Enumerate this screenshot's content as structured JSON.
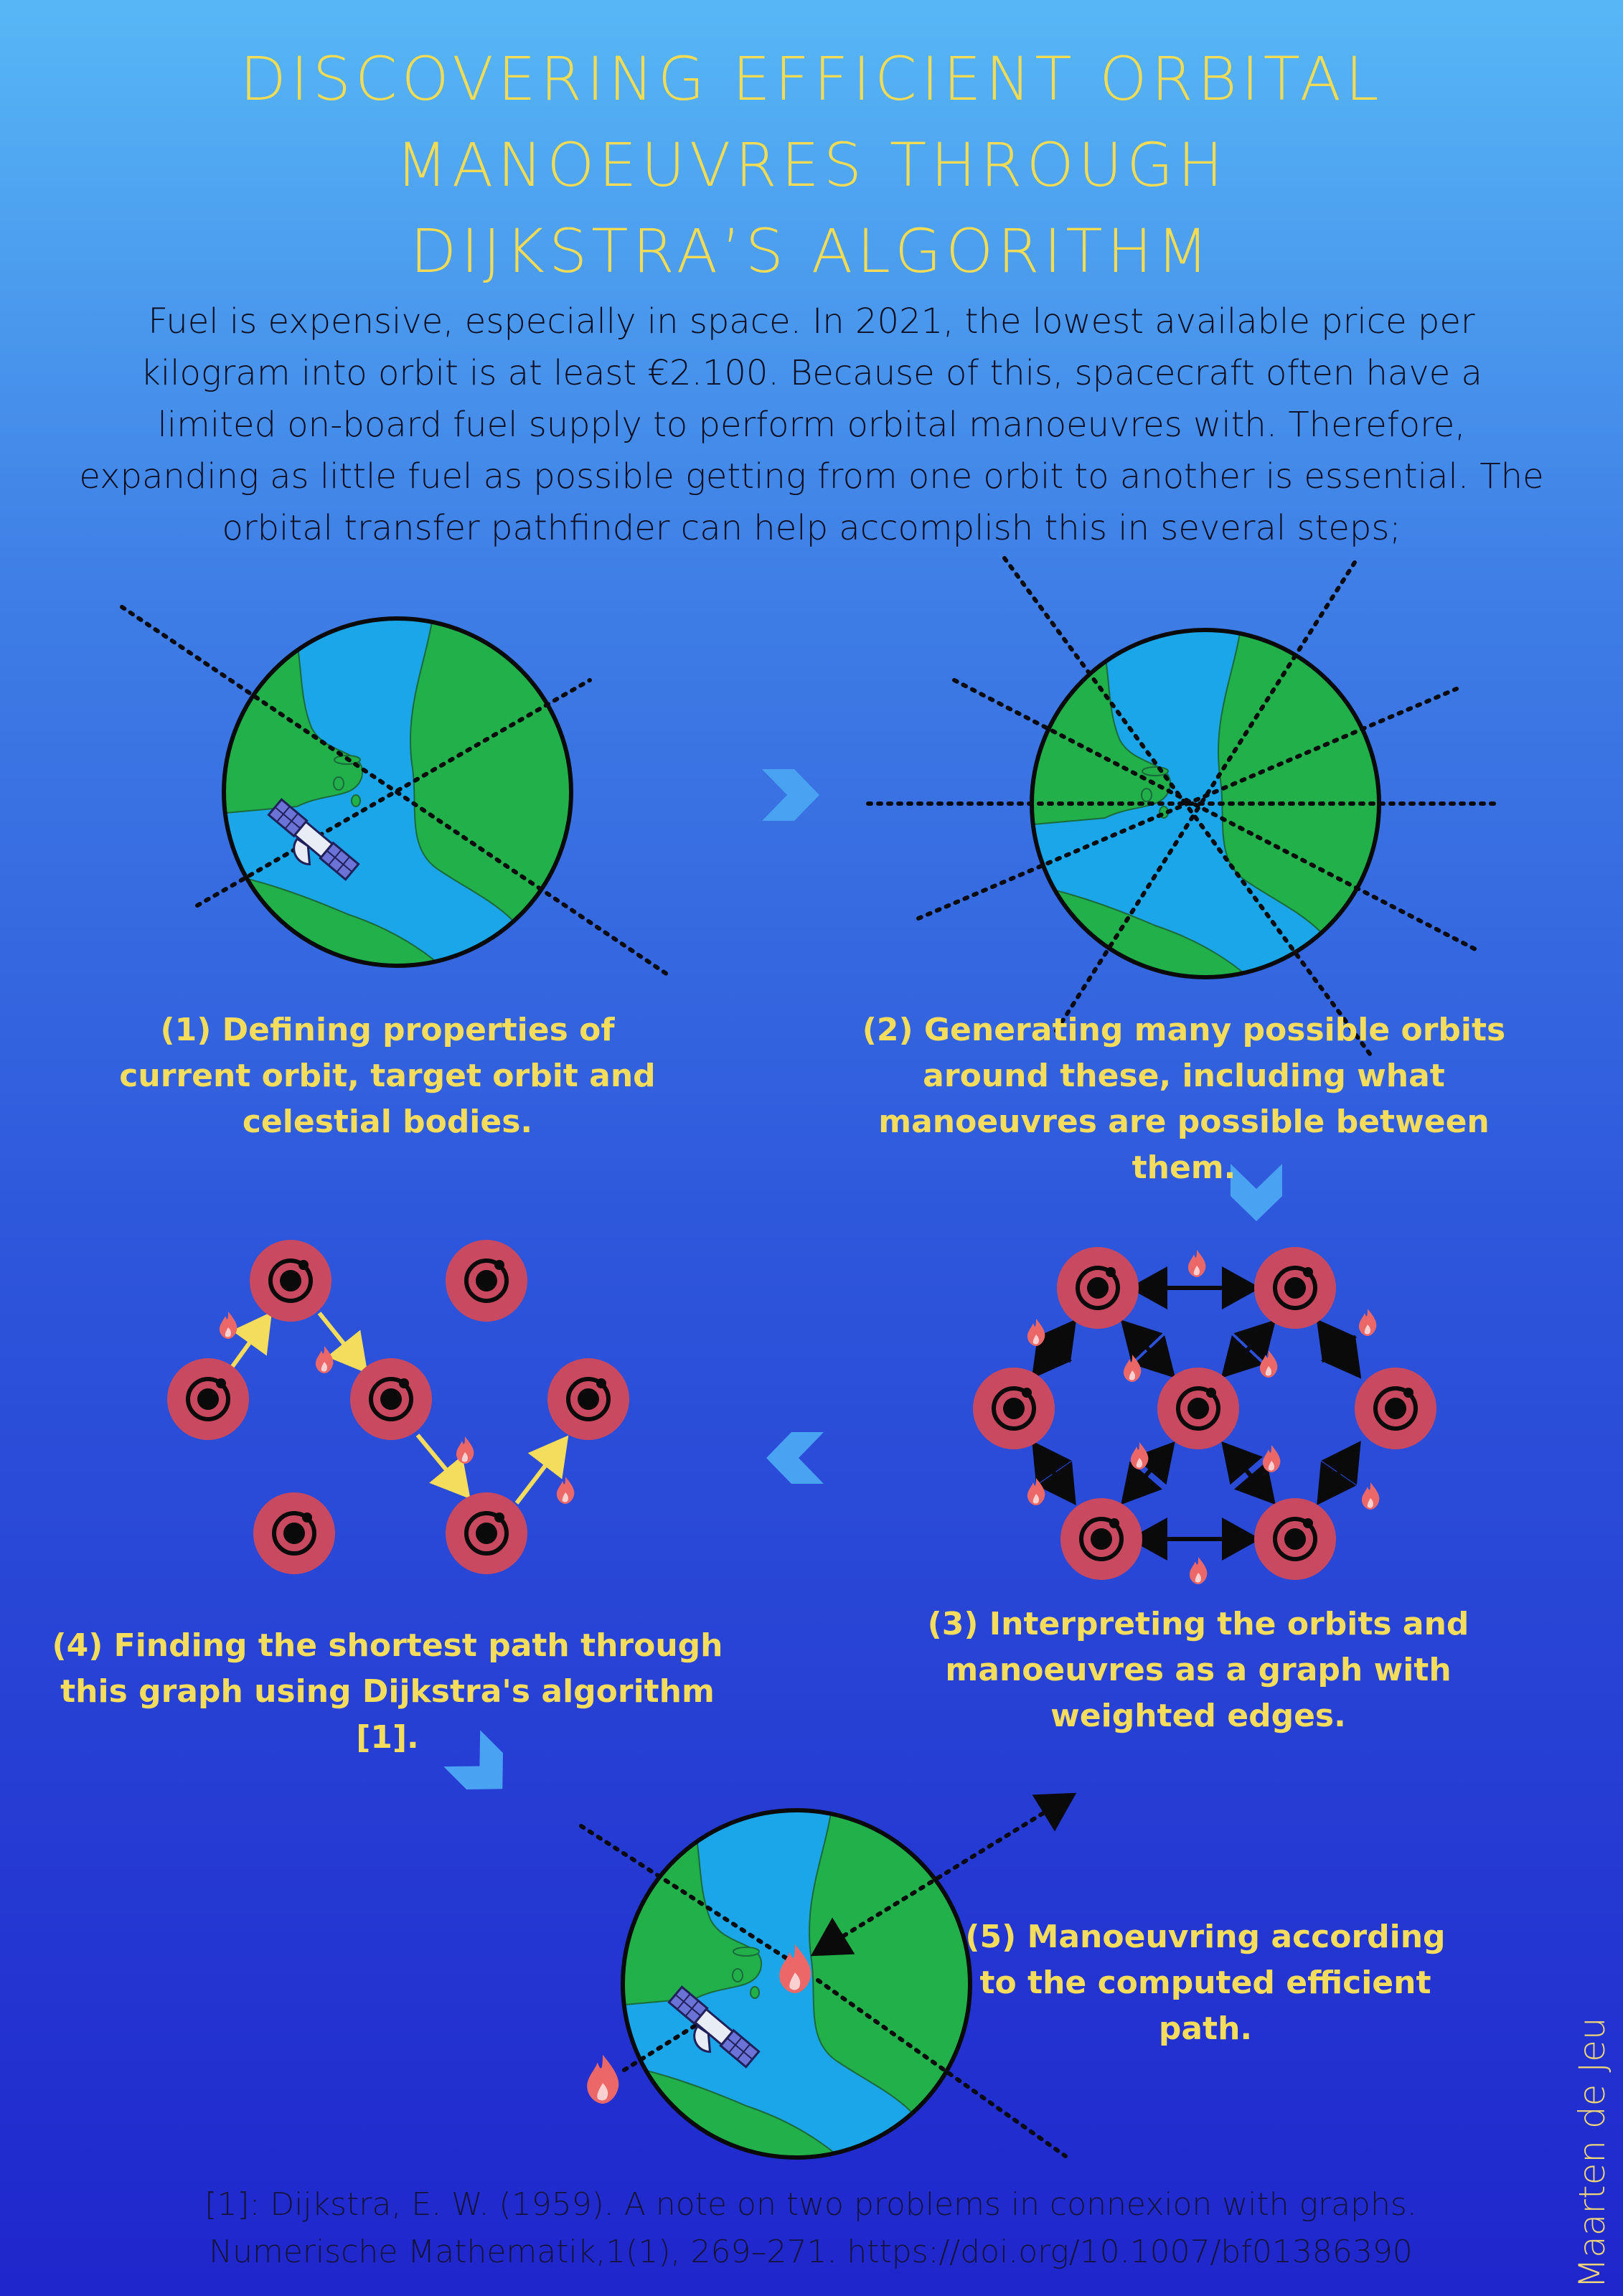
{
  "title": {
    "line1": "DISCOVERING EFFICIENT ORBITAL",
    "line2": "MANOEUVRES THROUGH",
    "line3": "DIJKSTRA’S ALGORITHM"
  },
  "intro": "Fuel is expensive, especially in space. In 2021, the lowest available price per kilogram into orbit is at least €2.100. Because of this, spacecraft often have a limited on-board fuel supply to perform orbital manoeuvres with. Therefore, expanding as little fuel as possible getting from one orbit to another is essential. The orbital transfer pathfinder can help accomplish this in several steps;",
  "steps": {
    "s1": "(1) Defining properties of current orbit, target orbit and celestial bodies.",
    "s2": "(2) Generating many possible orbits around these, including what manoeuvres are possible between them.",
    "s3": "(3) Interpreting the orbits and manoeuvres as a graph with weighted edges.",
    "s4": "(4) Finding the shortest path through this graph using Dijkstra's algorithm [1].",
    "s5": "(5) Manoeuvring according to the computed efficient path."
  },
  "reference": {
    "line1": "[1]: Dijkstra, E. W. (1959). A note on two problems in connexion with graphs.",
    "line2": "Numerische Mathematik,1(1), 269–271. https://doi.org/10.1007/bf01386390"
  },
  "author": "Maarten de Jeu",
  "colors": {
    "title": "#f2dc55",
    "step_text": "#f4dc5c",
    "ocean": "#1aa6e8",
    "land": "#22b04b",
    "node": "#c94a60",
    "chevron": "#4aa2f2",
    "path_arrow": "#f4dc5c"
  },
  "icons": [
    "planet-icon",
    "satellite-icon",
    "flame-icon",
    "orbit-node-icon",
    "chevron-arrow-icon"
  ]
}
